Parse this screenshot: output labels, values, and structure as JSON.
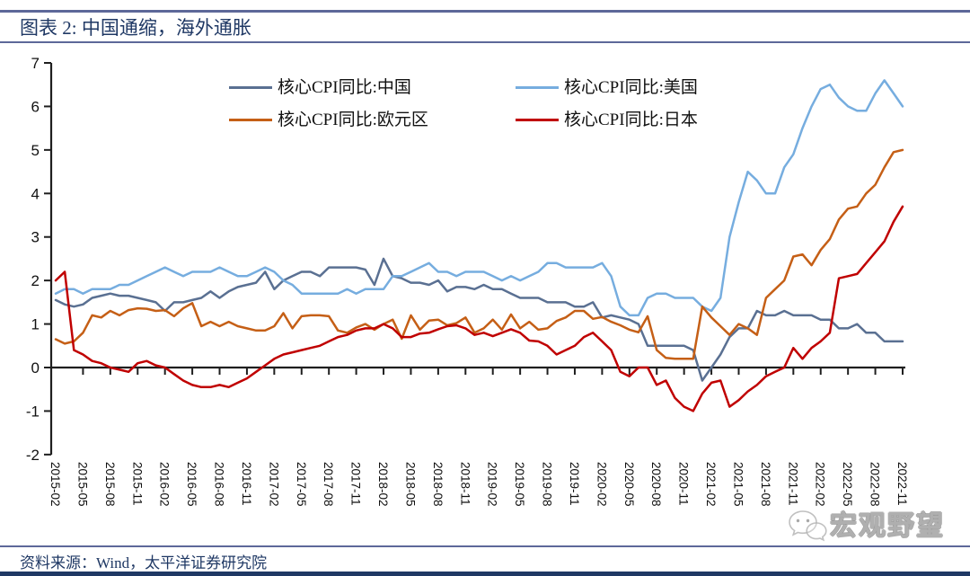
{
  "header": {
    "title": "图表 2:  中国通缩，海外通胀"
  },
  "footer": {
    "source_label": "资料来源：Wind，太平洋证券研究院"
  },
  "watermark": {
    "text": "宏观野望",
    "icon": "wechat-icon"
  },
  "colors": {
    "title_navy": "#1f3864",
    "rule_slate": "#5d6899",
    "axis_black": "#1f1f1f"
  },
  "chart_data": {
    "type": "line",
    "title": "图表 2: 中国通缩，海外通胀",
    "x_start": "2015-02",
    "x_end": "2022-11",
    "x_tick_month_step": 3,
    "x_tick_labels": [
      "2015-02",
      "2015-05",
      "2015-08",
      "2015-11",
      "2016-02",
      "2016-05",
      "2016-08",
      "2016-11",
      "2017-02",
      "2017-05",
      "2017-08",
      "2017-11",
      "2018-02",
      "2018-05",
      "2018-08",
      "2018-11",
      "2019-02",
      "2019-05",
      "2019-08",
      "2019-11",
      "2020-02",
      "2020-05",
      "2020-08",
      "2020-11",
      "2021-02",
      "2021-05",
      "2021-08",
      "2021-11",
      "2022-02",
      "2022-05",
      "2022-08",
      "2022-11"
    ],
    "ylim": [
      -2,
      7
    ],
    "y_ticks": [
      7,
      6,
      5,
      4,
      3,
      2,
      1,
      0,
      -1,
      -2
    ],
    "grid": false,
    "legend_position": "top-inside",
    "series": [
      {
        "name": "核心CPI同比:中国",
        "color": "#5a7092",
        "values": [
          1.55,
          1.45,
          1.4,
          1.45,
          1.6,
          1.65,
          1.7,
          1.65,
          1.65,
          1.6,
          1.55,
          1.5,
          1.3,
          1.5,
          1.5,
          1.55,
          1.6,
          1.75,
          1.6,
          1.75,
          1.85,
          1.9,
          1.95,
          2.2,
          1.8,
          2.0,
          2.1,
          2.2,
          2.2,
          2.1,
          2.3,
          2.3,
          2.3,
          2.3,
          2.25,
          1.9,
          2.5,
          2.1,
          2.05,
          1.95,
          1.95,
          1.9,
          2.0,
          1.75,
          1.85,
          1.85,
          1.8,
          1.9,
          1.8,
          1.8,
          1.7,
          1.6,
          1.6,
          1.6,
          1.5,
          1.5,
          1.5,
          1.4,
          1.4,
          1.5,
          1.15,
          1.2,
          1.15,
          1.1,
          1.0,
          0.5,
          0.5,
          0.5,
          0.5,
          0.5,
          0.4,
          -0.3,
          0.0,
          0.3,
          0.7,
          0.9,
          0.9,
          1.3,
          1.2,
          1.2,
          1.3,
          1.2,
          1.2,
          1.2,
          1.1,
          1.1,
          0.9,
          0.9,
          1.0,
          0.8,
          0.8,
          0.6,
          0.6,
          0.6
        ]
      },
      {
        "name": "核心CPI同比:美国",
        "color": "#76addf",
        "values": [
          1.7,
          1.8,
          1.8,
          1.7,
          1.8,
          1.8,
          1.8,
          1.9,
          1.9,
          2.0,
          2.1,
          2.2,
          2.3,
          2.2,
          2.1,
          2.2,
          2.2,
          2.2,
          2.3,
          2.2,
          2.1,
          2.1,
          2.2,
          2.3,
          2.2,
          2.0,
          1.9,
          1.7,
          1.7,
          1.7,
          1.7,
          1.7,
          1.8,
          1.7,
          1.8,
          1.8,
          1.8,
          2.1,
          2.1,
          2.2,
          2.3,
          2.4,
          2.2,
          2.2,
          2.1,
          2.2,
          2.2,
          2.2,
          2.1,
          2.0,
          2.1,
          2.0,
          2.1,
          2.2,
          2.4,
          2.4,
          2.3,
          2.3,
          2.3,
          2.3,
          2.4,
          2.1,
          1.4,
          1.2,
          1.2,
          1.6,
          1.7,
          1.7,
          1.6,
          1.6,
          1.6,
          1.4,
          1.3,
          1.6,
          3.0,
          3.8,
          4.5,
          4.3,
          4.0,
          4.0,
          4.6,
          4.9,
          5.5,
          6.0,
          6.4,
          6.5,
          6.2,
          6.0,
          5.9,
          5.9,
          6.3,
          6.6,
          6.3,
          6.0
        ]
      },
      {
        "name": "核心CPI同比:欧元区",
        "color": "#c55f16",
        "values": [
          0.65,
          0.55,
          0.6,
          0.8,
          1.2,
          1.15,
          1.3,
          1.2,
          1.32,
          1.36,
          1.35,
          1.3,
          1.32,
          1.18,
          1.36,
          1.48,
          0.95,
          1.05,
          0.95,
          1.05,
          0.95,
          0.9,
          0.85,
          0.85,
          0.95,
          1.25,
          0.9,
          1.18,
          1.2,
          1.2,
          1.18,
          0.85,
          0.8,
          0.92,
          1.0,
          0.87,
          1.0,
          1.1,
          0.66,
          1.2,
          0.87,
          1.08,
          1.1,
          0.97,
          1.02,
          1.15,
          0.8,
          0.9,
          1.1,
          0.87,
          1.22,
          0.9,
          1.05,
          0.87,
          0.9,
          1.07,
          1.15,
          1.3,
          1.3,
          1.12,
          1.16,
          1.05,
          0.97,
          0.87,
          0.81,
          1.18,
          0.4,
          0.22,
          0.2,
          0.2,
          0.2,
          1.4,
          1.15,
          0.95,
          0.75,
          1.0,
          0.9,
          0.75,
          1.6,
          1.8,
          2.0,
          2.55,
          2.6,
          2.35,
          2.7,
          2.95,
          3.4,
          3.65,
          3.7,
          4.0,
          4.2,
          4.6,
          4.95,
          5.0
        ]
      },
      {
        "name": "核心CPI同比:日本",
        "color": "#c00000",
        "values": [
          2.0,
          2.2,
          0.4,
          0.3,
          0.15,
          0.1,
          0.0,
          -0.05,
          -0.1,
          0.1,
          0.15,
          0.05,
          0.0,
          -0.15,
          -0.3,
          -0.4,
          -0.45,
          -0.45,
          -0.4,
          -0.45,
          -0.35,
          -0.25,
          -0.1,
          0.05,
          0.2,
          0.3,
          0.35,
          0.4,
          0.45,
          0.5,
          0.6,
          0.7,
          0.75,
          0.85,
          0.9,
          0.9,
          1.0,
          0.9,
          0.7,
          0.7,
          0.78,
          0.8,
          0.88,
          0.95,
          0.97,
          0.9,
          0.75,
          0.8,
          0.72,
          0.8,
          0.88,
          0.8,
          0.62,
          0.6,
          0.5,
          0.3,
          0.4,
          0.5,
          0.7,
          0.8,
          0.6,
          0.4,
          -0.1,
          -0.2,
          0.0,
          0.0,
          -0.4,
          -0.3,
          -0.7,
          -0.9,
          -1.0,
          -0.6,
          -0.35,
          -0.3,
          -0.9,
          -0.75,
          -0.55,
          -0.4,
          -0.2,
          -0.1,
          0.0,
          0.45,
          0.2,
          0.45,
          0.6,
          0.8,
          2.05,
          2.1,
          2.15,
          2.4,
          2.65,
          2.9,
          3.35,
          3.7
        ]
      }
    ]
  }
}
